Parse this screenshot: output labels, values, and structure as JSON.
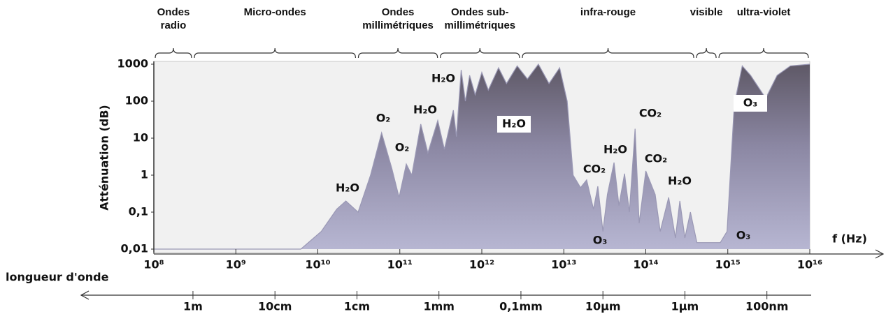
{
  "chart_data": {
    "type": "area",
    "xlabel": "f (Hz)",
    "ylabel": "Atténuation (dB)",
    "x2label": "longueur d'onde",
    "xscale": "log",
    "yscale": "log",
    "color": "#9a98b5",
    "xlim": [
      100000000.0,
      1e+16
    ],
    "ylim": [
      0.01,
      1000
    ],
    "xticks": [
      {
        "value": 100000000.0,
        "label": "10⁸"
      },
      {
        "value": 1000000000.0,
        "label": "10⁹"
      },
      {
        "value": 10000000000.0,
        "label": "10¹⁰"
      },
      {
        "value": 100000000000.0,
        "label": "10¹¹"
      },
      {
        "value": 1000000000000.0,
        "label": "10¹²"
      },
      {
        "value": 10000000000000.0,
        "label": "10¹³"
      },
      {
        "value": 100000000000000.0,
        "label": "10¹⁴"
      },
      {
        "value": 1000000000000000.0,
        "label": "10¹⁵"
      },
      {
        "value": 1e+16,
        "label": "10¹⁶"
      }
    ],
    "yticks": [
      1000,
      100,
      10,
      1,
      {
        "value": 0.1,
        "label": "0,1"
      },
      {
        "value": 0.01,
        "label": "0,01"
      }
    ],
    "x2ticks": [
      {
        "value": 300000000.0,
        "label": "1m"
      },
      {
        "value": 3000000000.0,
        "label": "10cm"
      },
      {
        "value": 30000000000.0,
        "label": "1cm"
      },
      {
        "value": 300000000000.0,
        "label": "1mm"
      },
      {
        "value": 3000000000000.0,
        "label": "0,1mm"
      },
      {
        "value": 30000000000000.0,
        "label": "10µm"
      },
      {
        "value": 300000000000000.0,
        "label": "1µm"
      },
      {
        "value": 3000000000000000.0,
        "label": "100nm"
      }
    ],
    "bands": [
      {
        "name": "Ondes radio",
        "from": 100000000.0,
        "to": 300000000.0
      },
      {
        "name": "Micro-ondes",
        "from": 300000000.0,
        "to": 30000000000.0
      },
      {
        "name": "Ondes millimétriques",
        "from": 30000000000.0,
        "to": 300000000000.0
      },
      {
        "name": "Ondes sub-millimétriques",
        "from": 300000000000.0,
        "to": 3000000000000.0
      },
      {
        "name": "infra-rouge",
        "from": 3000000000000.0,
        "to": 400000000000000.0
      },
      {
        "name": "visible",
        "from": 400000000000000.0,
        "to": 750000000000000.0
      },
      {
        "name": "ultra-violet",
        "from": 750000000000000.0,
        "to": 1e+16
      }
    ],
    "x": [
      100000000.0,
      870000000.0,
      6200000000.0,
      11000000000.0,
      17000000000.0,
      22000000000.0,
      31000000000.0,
      44000000000.0,
      60000000000.0,
      80000000000.0,
      98000000000.0,
      120000000000.0,
      140000000000.0,
      180000000000.0,
      220000000000.0,
      290000000000.0,
      350000000000.0,
      450000000000.0,
      490000000000.0,
      560000000000.0,
      630000000000.0,
      710000000000.0,
      830000000000.0,
      1000000000000.0,
      1200000000000.0,
      1600000000000.0,
      2000000000000.0,
      2700000000000.0,
      3600000000000.0,
      4900000000000.0,
      6600000000000.0,
      8900000000000.0,
      11000000000000.0,
      13000000000000.0,
      16000000000000.0,
      19000000000000.0,
      23000000000000.0,
      26000000000000.0,
      30000000000000.0,
      34000000000000.0,
      41000000000000.0,
      47000000000000.0,
      55000000000000.0,
      63000000000000.0,
      74000000000000.0,
      83000000000000.0,
      100000000000000.0,
      130000000000000.0,
      150000000000000.0,
      190000000000000.0,
      230000000000000.0,
      260000000000000.0,
      300000000000000.0,
      350000000000000.0,
      420000000000000.0,
      810000000000000.0,
      980000000000000.0,
      1200000000000000.0,
      1500000000000000.0,
      1900000000000000.0,
      2900000000000000.0,
      4000000000000000.0,
      5800000000000000.0,
      1e+16
    ],
    "values": [
      0.01,
      0.01,
      0.01,
      0.03,
      0.12,
      0.2,
      0.1,
      1,
      14,
      1.5,
      0.25,
      2,
      1,
      24,
      4,
      30,
      5,
      57,
      11,
      700,
      100,
      500,
      150,
      600,
      200,
      800,
      300,
      900,
      400,
      1000,
      300,
      800,
      100,
      1,
      0.46,
      0.74,
      0.12,
      0.5,
      0.03,
      0.3,
      2.2,
      0.15,
      1.1,
      0.1,
      18,
      0.05,
      1.3,
      0.3,
      0.03,
      0.25,
      0.02,
      0.2,
      0.02,
      0.1,
      0.015,
      0.015,
      0.03,
      80,
      900,
      500,
      120,
      500,
      900,
      1000
    ],
    "annotations": [
      "H₂O",
      "O₂",
      "O₂",
      "H₂O",
      "H₂O",
      "H₂O",
      "CO₂",
      "H₂O",
      "CO₂",
      "CO₂",
      "H₂O",
      "O₃",
      "O₃",
      "O₃"
    ]
  }
}
